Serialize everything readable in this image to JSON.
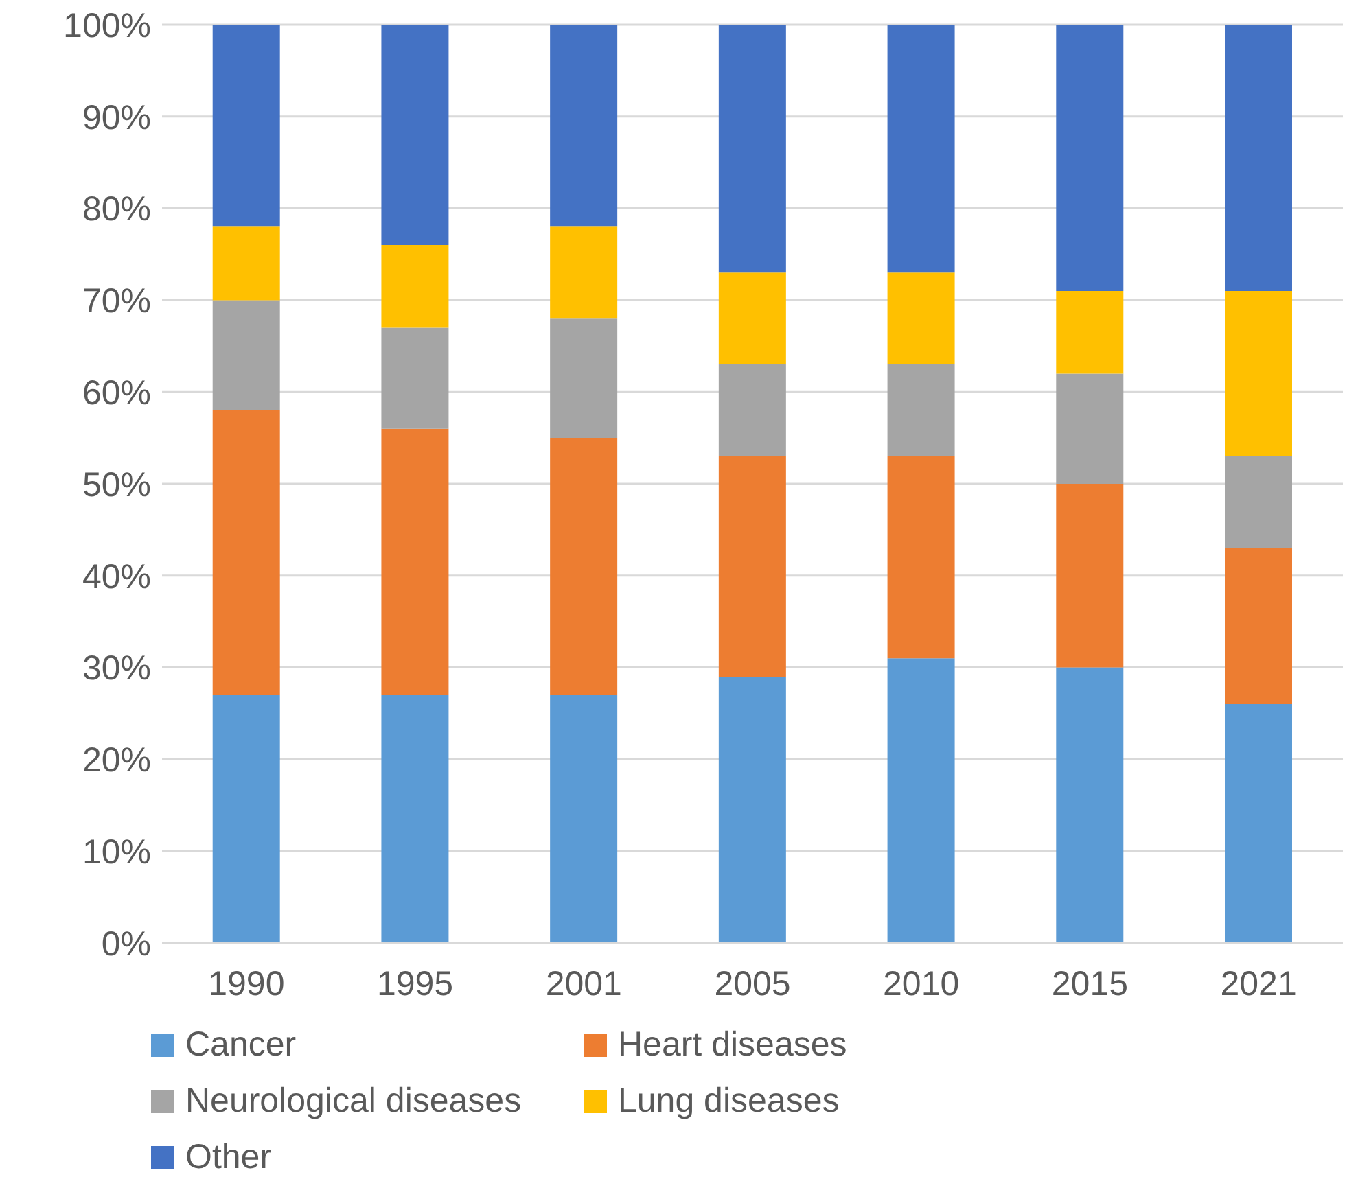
{
  "chart_data": {
    "type": "bar",
    "stacked": true,
    "categories": [
      "1990",
      "1995",
      "2001",
      "2005",
      "2010",
      "2015",
      "2021"
    ],
    "series": [
      {
        "name": "Cancer",
        "color": "#5b9bd5",
        "values": [
          27,
          27,
          27,
          29,
          31,
          30,
          26
        ]
      },
      {
        "name": "Heart diseases",
        "color": "#ed7d31",
        "values": [
          31,
          29,
          28,
          24,
          22,
          20,
          17
        ]
      },
      {
        "name": "Neurological diseases",
        "color": "#a5a5a5",
        "values": [
          12,
          11,
          13,
          10,
          10,
          12,
          10
        ]
      },
      {
        "name": "Lung diseases",
        "color": "#ffc000",
        "values": [
          8,
          9,
          10,
          10,
          10,
          9,
          18
        ]
      },
      {
        "name": "Other",
        "color": "#4472c4",
        "values": [
          22,
          24,
          22,
          27,
          27,
          29,
          29
        ]
      }
    ],
    "ylim": [
      0,
      100
    ],
    "yticks": [
      {
        "value": 0,
        "label": "0%"
      },
      {
        "value": 10,
        "label": "10%"
      },
      {
        "value": 20,
        "label": "20%"
      },
      {
        "value": 30,
        "label": "30%"
      },
      {
        "value": 40,
        "label": "40%"
      },
      {
        "value": 50,
        "label": "50%"
      },
      {
        "value": 60,
        "label": "60%"
      },
      {
        "value": 70,
        "label": "70%"
      },
      {
        "value": 80,
        "label": "80%"
      },
      {
        "value": 90,
        "label": "90%"
      },
      {
        "value": 100,
        "label": "100%"
      }
    ],
    "grid": "y",
    "legend": "bottom"
  }
}
